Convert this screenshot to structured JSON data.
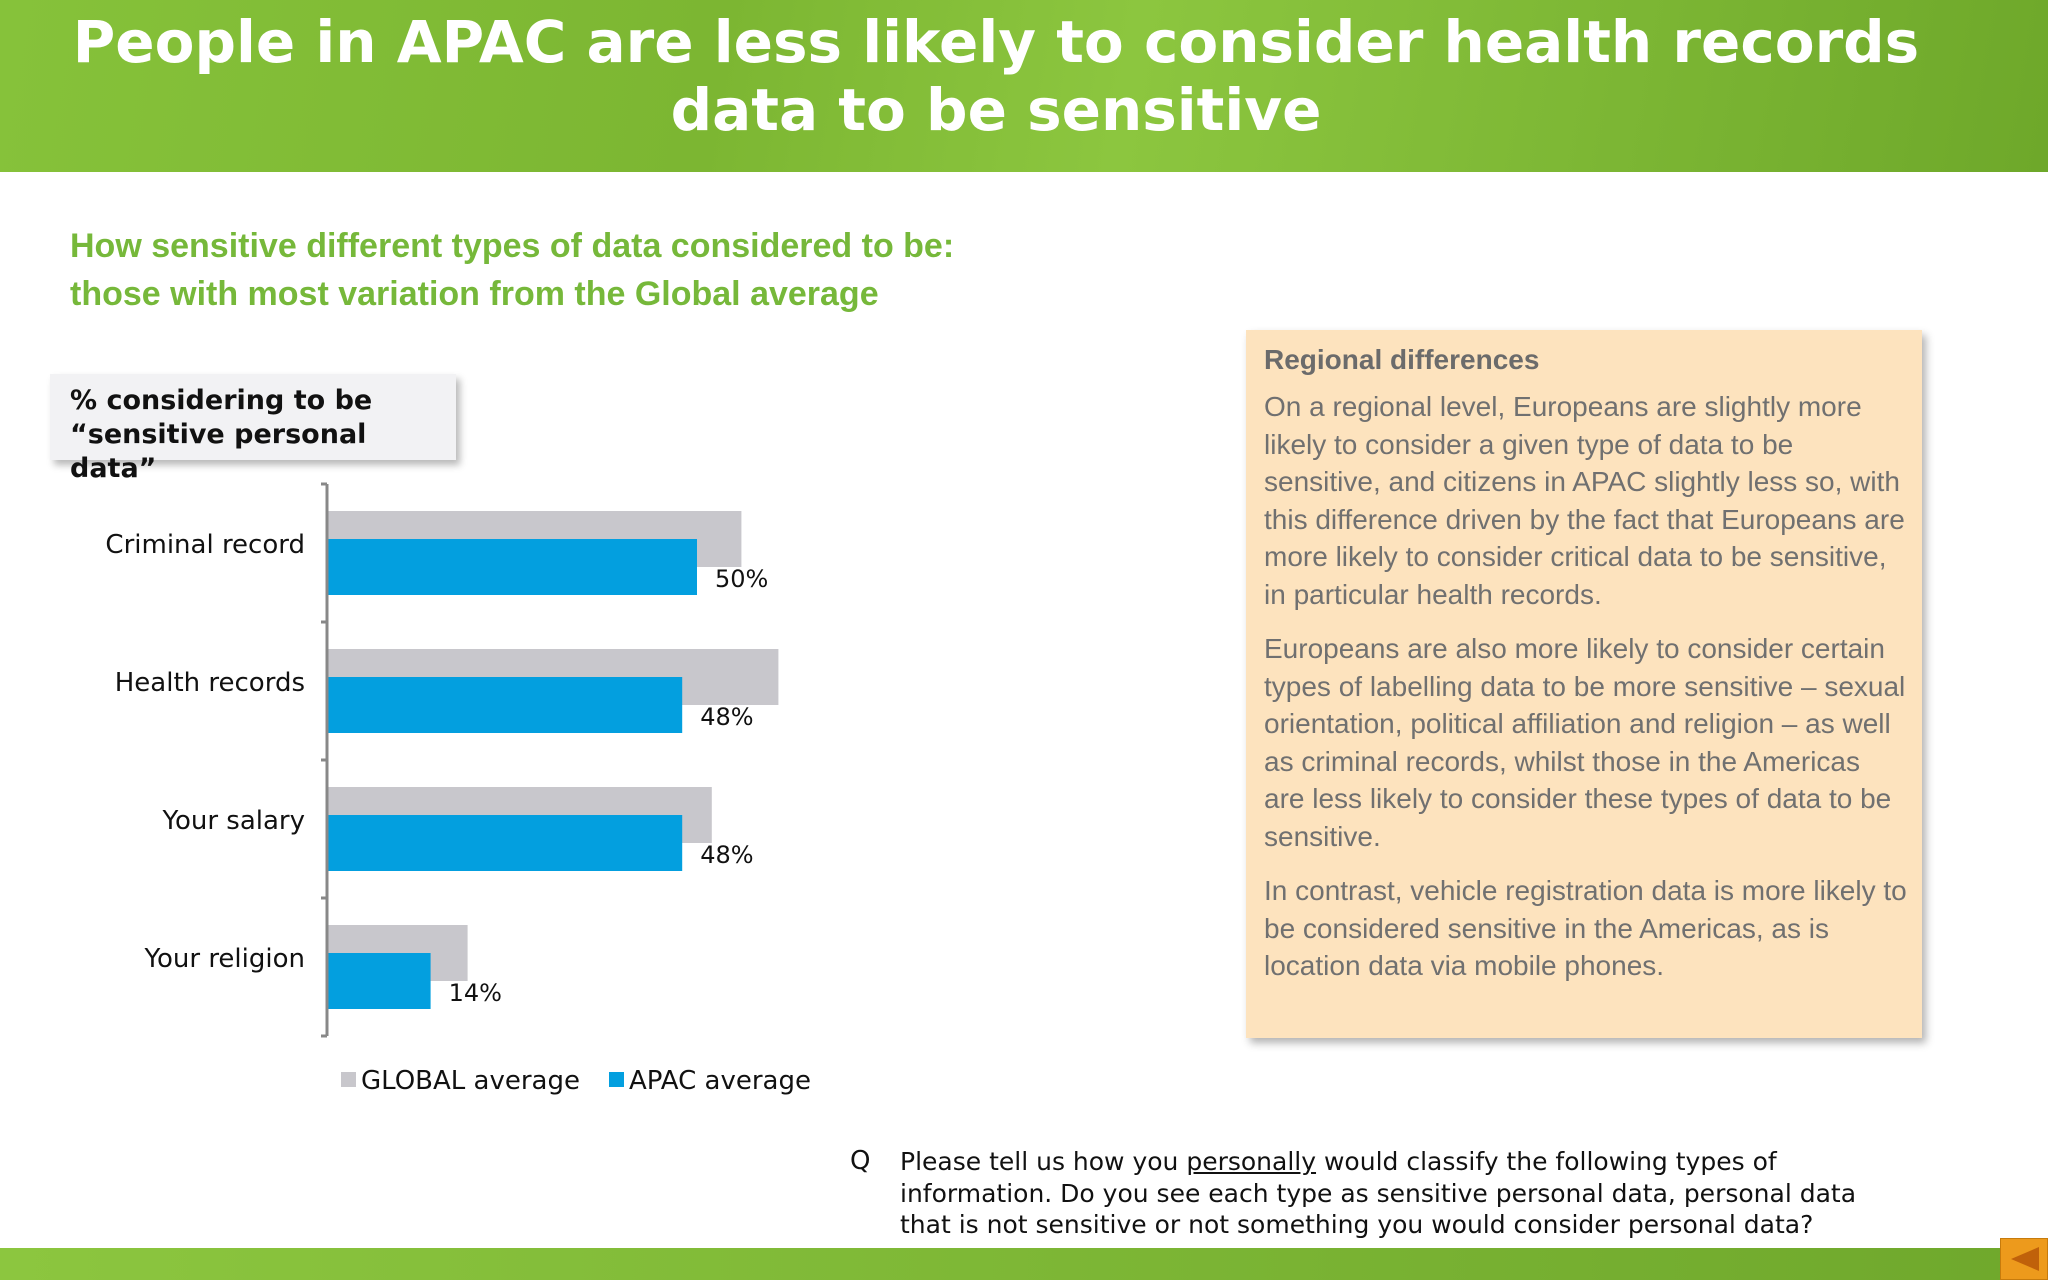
{
  "header": {
    "title": "People in APAC are less likely to consider health records data to be sensitive"
  },
  "subtitle": {
    "line1": "How sensitive different types of data considered to be:",
    "line2": "those with most variation from the Global average"
  },
  "chart_data": {
    "type": "bar",
    "orientation": "horizontal",
    "title": "% considering to be “sensitive personal data”",
    "categories": [
      "Criminal record",
      "Health records",
      "Your salary",
      "Your religion"
    ],
    "series": [
      {
        "name": "GLOBAL average",
        "color": "#c8c7cc",
        "values": [
          56,
          61,
          52,
          19
        ]
      },
      {
        "name": "APAC average",
        "color": "#039fdf",
        "values": [
          50,
          48,
          48,
          14
        ]
      }
    ],
    "data_labels": [
      "50%",
      "48%",
      "48%",
      "14%"
    ],
    "legend": "bottom",
    "grid": false
  },
  "side_box": {
    "heading": "Regional differences",
    "paragraphs": [
      "On a regional level, Europeans are slightly more likely to consider a given type of data to be sensitive, and citizens in APAC slightly less so, with this difference driven by the fact that Europeans are more likely to consider critical data to be sensitive, in particular health records.",
      "Europeans are also more likely to consider certain types of labelling data to be more sensitive – sexual orientation, political affiliation and religion – as well as criminal records, whilst those in the Americas are less likely to consider these types of data to be sensitive.",
      "In contrast, vehicle registration data is more likely to be considered sensitive in the Americas, as is location data via mobile phones."
    ]
  },
  "question": {
    "marker": "Q",
    "before": "Please tell us how you ",
    "underlined": "personally",
    "after": " would classify the following types of information.  Do you see each type as sensitive personal data, personal data that is not sensitive or not something you would consider personal data?"
  },
  "nav": {
    "icon": "triangle-left-icon",
    "color": "#ed9a1c"
  }
}
